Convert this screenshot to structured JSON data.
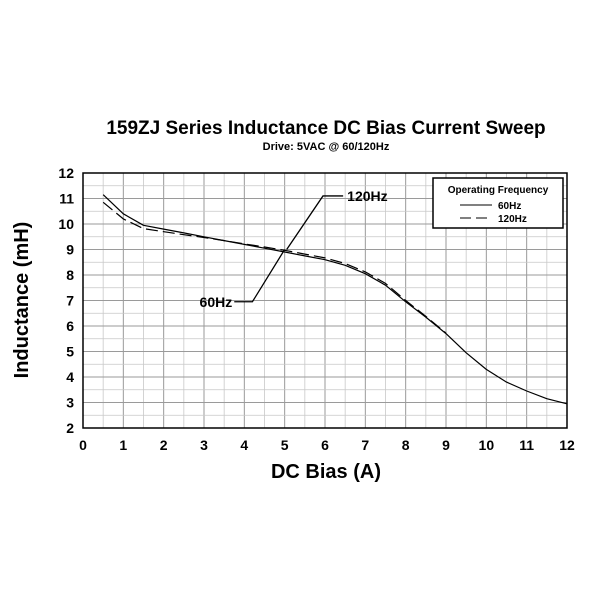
{
  "chart_data": {
    "type": "line",
    "title": "159ZJ Series Inductance DC Bias Current Sweep",
    "subtitle": "Drive: 5VAC @ 60/120Hz",
    "xlabel": "DC Bias (A)",
    "ylabel": "Inductance (mH)",
    "xlim": [
      0,
      12
    ],
    "ylim": [
      2,
      12
    ],
    "xticks": [
      "0",
      "1",
      "2",
      "3",
      "4",
      "5",
      "6",
      "7",
      "8",
      "9",
      "10",
      "11",
      "12"
    ],
    "yticks": [
      "2",
      "3",
      "4",
      "5",
      "6",
      "7",
      "8",
      "9",
      "10",
      "11",
      "12"
    ],
    "grid": true,
    "legend": {
      "title": "Operating Frequency",
      "placement": "top-right",
      "entries": [
        "60Hz",
        "120Hz"
      ]
    },
    "series": [
      {
        "name": "60Hz",
        "style": "solid",
        "x": [
          0.5,
          1,
          1.5,
          2,
          2.5,
          3,
          3.5,
          4,
          4.5,
          5,
          5.5,
          6,
          6.5,
          7,
          7.5,
          8,
          8.5,
          9,
          9.5,
          10,
          10.5,
          11,
          11.5,
          12
        ],
        "y": [
          11.15,
          10.4,
          9.95,
          9.8,
          9.65,
          9.5,
          9.35,
          9.2,
          9.05,
          8.9,
          8.75,
          8.6,
          8.38,
          8.05,
          7.6,
          6.95,
          6.35,
          5.7,
          4.95,
          4.3,
          3.8,
          3.45,
          3.15,
          2.95
        ]
      },
      {
        "name": "120Hz",
        "style": "dashed",
        "x": [
          0.5,
          1,
          1.5,
          2,
          2.5,
          3,
          3.5,
          4,
          4.5,
          5,
          5.5,
          6,
          6.5,
          7,
          7.5,
          8,
          8.5,
          9
        ],
        "y": [
          10.85,
          10.2,
          9.82,
          9.7,
          9.58,
          9.47,
          9.35,
          9.22,
          9.1,
          8.97,
          8.82,
          8.67,
          8.45,
          8.12,
          7.67,
          7.0,
          6.38,
          5.72
        ]
      }
    ],
    "annotations": [
      {
        "text": "120Hz",
        "target_series": "120Hz"
      },
      {
        "text": "60Hz",
        "target_series": "60Hz"
      }
    ]
  }
}
